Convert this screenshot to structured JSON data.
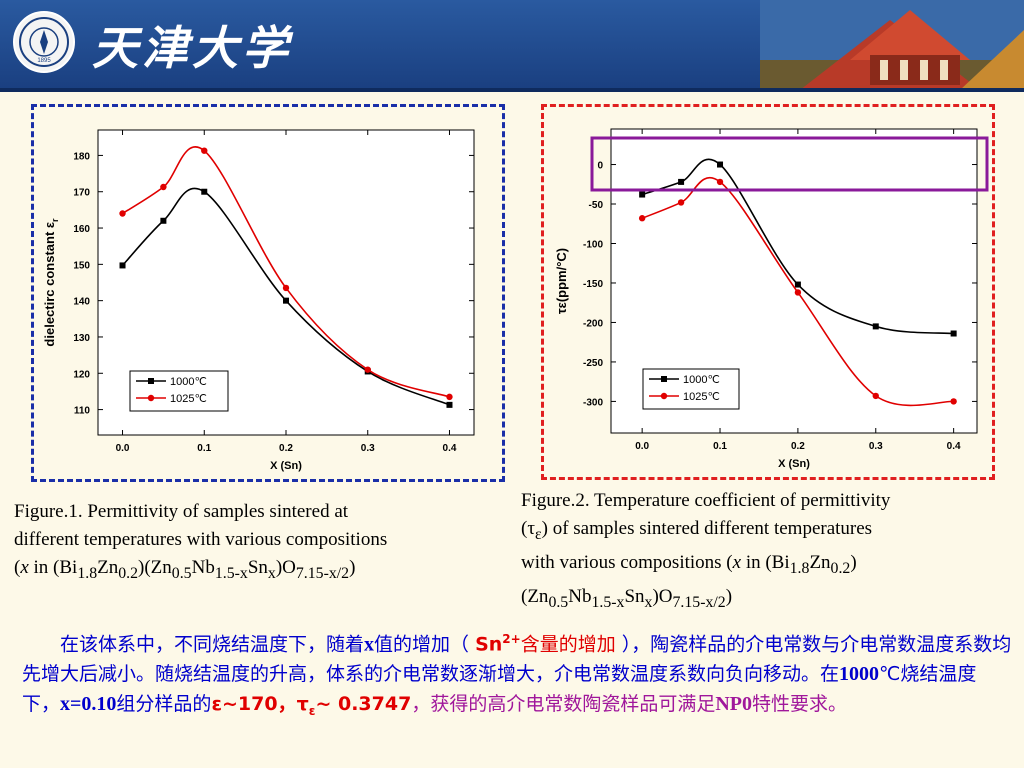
{
  "header": {
    "university_name": "天津大学",
    "logo_year": "1895"
  },
  "chart_data": [
    {
      "type": "line",
      "xlabel": "X (Sn)",
      "ylabel": "dielectirc constant ε",
      "ylabel_sub": "r",
      "x": [
        0.0,
        0.05,
        0.1,
        0.2,
        0.3,
        0.4
      ],
      "x_ticks": [
        "0.0",
        "0.1",
        "0.2",
        "0.3",
        "0.4"
      ],
      "y_ticks": [
        "110",
        "120",
        "130",
        "140",
        "150",
        "160",
        "170",
        "180"
      ],
      "xlim": [
        -0.03,
        0.43
      ],
      "ylim": [
        103,
        187
      ],
      "series": [
        {
          "name": "1000℃",
          "color": "#000000",
          "marker": "square",
          "values": [
            149.7,
            162,
            170,
            140,
            120.5,
            111.3
          ]
        },
        {
          "name": "1025℃",
          "color": "#e00000",
          "marker": "circle",
          "values": [
            164,
            171.3,
            181.3,
            143.5,
            121,
            113.5
          ]
        }
      ],
      "legend": "bottom-left"
    },
    {
      "type": "line",
      "xlabel": "X (Sn)",
      "ylabel": "τε(ppm/°C)",
      "x": [
        0.0,
        0.05,
        0.1,
        0.2,
        0.3,
        0.4
      ],
      "x_ticks": [
        "0.0",
        "0.1",
        "0.2",
        "0.3",
        "0.4"
      ],
      "y_ticks": [
        "0",
        "-50",
        "-100",
        "-150",
        "-200",
        "-250",
        "-300"
      ],
      "xlim": [
        -0.04,
        0.43
      ],
      "ylim": [
        -340,
        45
      ],
      "series": [
        {
          "name": "1000℃",
          "color": "#000000",
          "marker": "square",
          "values": [
            -38,
            -22,
            0,
            -152,
            -205,
            -214
          ]
        },
        {
          "name": "1025℃",
          "color": "#e00000",
          "marker": "circle",
          "values": [
            -68,
            -48,
            -22,
            -162,
            -293,
            -300
          ]
        }
      ],
      "legend": "bottom-left",
      "highlight": "y from 0 to -50 band (purple box)"
    }
  ],
  "caption1": {
    "line1": "Figure.1. Permittivity of samples sintered at",
    "line2": "different temperatures with various compositions",
    "line3_open": "(",
    "line3_x": "x",
    "line3_in": " in  (Bi",
    "s1": "1.8",
    "t1": "Zn",
    "s2": "0.2",
    "t2": ")(Zn",
    "s3": "0.5",
    "t3": "Nb",
    "s4": "1.5-x",
    "t4": "Sn",
    "s5": "x",
    "t5": ")O",
    "s6": "7.15-x/2",
    "t6": ")"
  },
  "caption2": {
    "line1": "Figure.2. Temperature coefficient of permittivity",
    "l2a": "(τ",
    "l2s": "ε",
    "l2b": ") of samples sintered different temperatures",
    "l3a": "with various compositions (",
    "l3x": "x",
    "l3b": " in (Bi",
    "s1": "1.8",
    "t1": "Zn",
    "s2": "0.2",
    "t2": ")",
    "l4a": "(Zn",
    "s3": "0.5",
    "t3": "Nb",
    "s4": "1.5-x",
    "t4": "Sn",
    "s5": "x",
    "t5": ")O",
    "s6": "7.15-x/2",
    "t6": ")"
  },
  "body": {
    "p1": "在该体系中，不同烧结温度下，随着",
    "x": "x",
    "p2": "值的增加（ ",
    "sn": "Sn",
    "sn_sup": "2+",
    "p3": "含量的增加",
    "p4": " ），陶瓷样品的介电常数与介电常数温度系数均先增大后减小。随烧结温度的升高，体系的介电常数逐渐增大，介电常数温度系数向负向移动。在",
    "t1000": "1000",
    "p5": "℃烧结温度下，",
    "x010": "x=0.10",
    "p6": "组分样品的",
    "eps": "ε~170",
    "comma": "，",
    "tau": "τ",
    "tau_sub": "ε",
    "tau_val": "~ 0.3747",
    "p7": "，获得的高介电常数陶瓷样品可满足",
    "np0": "NP0",
    "p8": "特性要求。"
  }
}
